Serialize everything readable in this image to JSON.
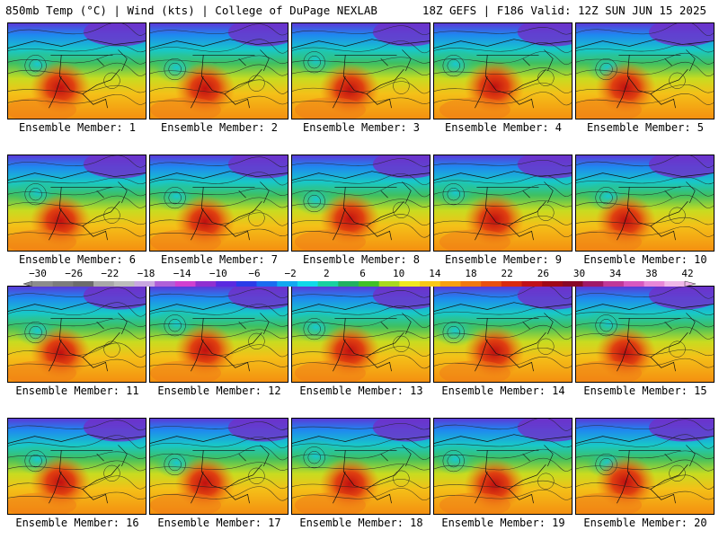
{
  "header": {
    "left_title": "850mb Temp (°C) | Wind (kts) | College of DuPage NEXLAB",
    "right_title": "18Z GEFS | F186 Valid: 12Z SUN JUN 15 2025"
  },
  "members": [
    {
      "label": "Ensemble Member: 1"
    },
    {
      "label": "Ensemble Member: 2"
    },
    {
      "label": "Ensemble Member: 3"
    },
    {
      "label": "Ensemble Member: 4"
    },
    {
      "label": "Ensemble Member: 5"
    },
    {
      "label": "Ensemble Member: 6"
    },
    {
      "label": "Ensemble Member: 7"
    },
    {
      "label": "Ensemble Member: 8"
    },
    {
      "label": "Ensemble Member: 9"
    },
    {
      "label": "Ensemble Member: 10"
    },
    {
      "label": "Ensemble Member: 11"
    },
    {
      "label": "Ensemble Member: 12"
    },
    {
      "label": "Ensemble Member: 13"
    },
    {
      "label": "Ensemble Member: 14"
    },
    {
      "label": "Ensemble Member: 15"
    },
    {
      "label": "Ensemble Member: 16"
    },
    {
      "label": "Ensemble Member: 17"
    },
    {
      "label": "Ensemble Member: 18"
    },
    {
      "label": "Ensemble Member: 19"
    },
    {
      "label": "Ensemble Member: 20"
    }
  ],
  "colorbar": {
    "ticks": [
      "-30",
      "-26",
      "-22",
      "-18",
      "-14",
      "-10",
      "-6",
      "-2",
      "2",
      "6",
      "10",
      "14",
      "18",
      "22",
      "26",
      "30",
      "34",
      "38",
      "42"
    ],
    "colors": [
      "#8c8c8c",
      "#7c7c7c",
      "#6c6c6c",
      "#a8a8a8",
      "#bcbcbc",
      "#c9a8e0",
      "#b060d8",
      "#d040d0",
      "#9030d0",
      "#5a2ae0",
      "#2a3ce8",
      "#1a6cf0",
      "#12a8f0",
      "#10d8e8",
      "#18d0a0",
      "#20b060",
      "#40c028",
      "#a8d820",
      "#f0e820",
      "#f8c818",
      "#f8a010",
      "#f07810",
      "#e85010",
      "#d82a10",
      "#c01018",
      "#a00818",
      "#880828",
      "#a01868",
      "#c03898",
      "#d858c0",
      "#e888d8",
      "#f0b8e8"
    ]
  }
}
